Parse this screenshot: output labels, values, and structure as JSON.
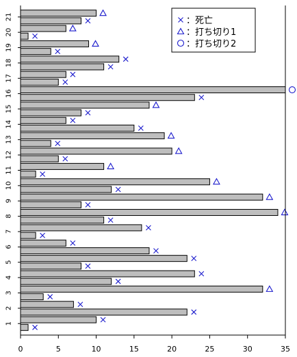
{
  "chart_data": {
    "type": "bar",
    "orientation": "horizontal",
    "title": "",
    "xlabel": "",
    "ylabel": "",
    "xlim": [
      0,
      35
    ],
    "x_ticks": [
      "0",
      "5",
      "10",
      "15",
      "20",
      "25",
      "30",
      "35"
    ],
    "x_tick_values": [
      0,
      5,
      10,
      15,
      20,
      25,
      30,
      35
    ],
    "subjects": [
      "1",
      "2",
      "3",
      "4",
      "5",
      "6",
      "7",
      "8",
      "9",
      "10",
      "11",
      "12",
      "13",
      "14",
      "15",
      "16",
      "17",
      "18",
      "19",
      "20",
      "21"
    ],
    "bar_color": "#bebebe",
    "marker_color": "#1a1acc",
    "grid": false,
    "legend_position": "top-right",
    "legend": [
      {
        "marker": "x",
        "label": "：死亡"
      },
      {
        "marker": "triangle",
        "label": "：打ち切り1"
      },
      {
        "marker": "circle",
        "label": "：打ち切り2"
      }
    ],
    "bars": [
      {
        "subject": "1",
        "value": 1,
        "marker": "x"
      },
      {
        "subject": "1",
        "value": 10,
        "marker": "x"
      },
      {
        "subject": "2",
        "value": 22,
        "marker": "x"
      },
      {
        "subject": "2",
        "value": 7,
        "marker": "x"
      },
      {
        "subject": "3",
        "value": 3,
        "marker": "x"
      },
      {
        "subject": "3",
        "value": 32,
        "marker": "triangle"
      },
      {
        "subject": "4",
        "value": 12,
        "marker": "x"
      },
      {
        "subject": "4",
        "value": 23,
        "marker": "x"
      },
      {
        "subject": "5",
        "value": 8,
        "marker": "x"
      },
      {
        "subject": "5",
        "value": 22,
        "marker": "x"
      },
      {
        "subject": "6",
        "value": 17,
        "marker": "x"
      },
      {
        "subject": "6",
        "value": 6,
        "marker": "x"
      },
      {
        "subject": "7",
        "value": 2,
        "marker": "x"
      },
      {
        "subject": "7",
        "value": 16,
        "marker": "x"
      },
      {
        "subject": "8",
        "value": 11,
        "marker": "x"
      },
      {
        "subject": "8",
        "value": 34,
        "marker": "triangle"
      },
      {
        "subject": "9",
        "value": 8,
        "marker": "x"
      },
      {
        "subject": "9",
        "value": 32,
        "marker": "triangle"
      },
      {
        "subject": "10",
        "value": 12,
        "marker": "x"
      },
      {
        "subject": "10",
        "value": 25,
        "marker": "triangle"
      },
      {
        "subject": "11",
        "value": 2,
        "marker": "x"
      },
      {
        "subject": "11",
        "value": 11,
        "marker": "triangle"
      },
      {
        "subject": "12",
        "value": 5,
        "marker": "x"
      },
      {
        "subject": "12",
        "value": 20,
        "marker": "triangle"
      },
      {
        "subject": "13",
        "value": 4,
        "marker": "x"
      },
      {
        "subject": "13",
        "value": 19,
        "marker": "triangle"
      },
      {
        "subject": "14",
        "value": 15,
        "marker": "x"
      },
      {
        "subject": "14",
        "value": 6,
        "marker": "x"
      },
      {
        "subject": "15",
        "value": 8,
        "marker": "x"
      },
      {
        "subject": "15",
        "value": 17,
        "marker": "triangle"
      },
      {
        "subject": "16",
        "value": 23,
        "marker": "x"
      },
      {
        "subject": "16",
        "value": 35,
        "marker": "circle"
      },
      {
        "subject": "17",
        "value": 5,
        "marker": "x"
      },
      {
        "subject": "17",
        "value": 6,
        "marker": "x"
      },
      {
        "subject": "18",
        "value": 11,
        "marker": "x"
      },
      {
        "subject": "18",
        "value": 13,
        "marker": "x"
      },
      {
        "subject": "19",
        "value": 4,
        "marker": "x"
      },
      {
        "subject": "19",
        "value": 9,
        "marker": "triangle"
      },
      {
        "subject": "20",
        "value": 1,
        "marker": "x"
      },
      {
        "subject": "20",
        "value": 6,
        "marker": "triangle"
      },
      {
        "subject": "21",
        "value": 8,
        "marker": "x"
      },
      {
        "subject": "21",
        "value": 10,
        "marker": "triangle"
      }
    ]
  }
}
